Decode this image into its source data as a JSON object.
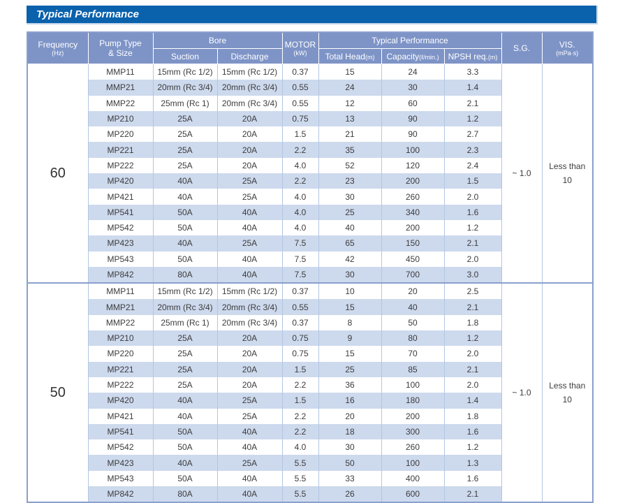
{
  "page": {
    "title": "Typical Performance"
  },
  "colors": {
    "title_bar_bg": "#0a61ac",
    "header_bg": "#7e94c7",
    "row_stripe": "#cdd9ed",
    "table_border": "#8aa0cc",
    "cell_border": "#b3c6e2"
  },
  "table": {
    "headers": {
      "frequency": "Frequency",
      "frequency_unit": "(Hz)",
      "pump_type_line1": "Pump Type",
      "pump_type_line2": "& Size",
      "bore": "Bore",
      "suction": "Suction",
      "discharge": "Discharge",
      "motor": "MOTOR",
      "motor_unit": "(kW)",
      "typical_performance": "Typical Performance",
      "total_head": "Total Head",
      "total_head_unit": "(m)",
      "capacity": "Capacity",
      "capacity_unit": "(ℓ/min.)",
      "npsh": "NPSH req.",
      "npsh_unit": "(m)",
      "sg": "S.G.",
      "vis": "VIS.",
      "vis_unit": "(mPa·s)"
    },
    "row_fields": [
      "pump_type",
      "suction",
      "discharge",
      "motor_kw",
      "total_head_m",
      "capacity_l_min",
      "npsh_req_m"
    ],
    "groups": [
      {
        "frequency": "60",
        "sg": "~ 1.0",
        "vis_line1": "Less than",
        "vis_line2": "10",
        "rows": [
          [
            "MMP11",
            "15mm (Rc 1/2)",
            "15mm (Rc 1/2)",
            "0.37",
            "15",
            "24",
            "3.3"
          ],
          [
            "MMP21",
            "20mm (Rc 3/4)",
            "20mm (Rc 3/4)",
            "0.55",
            "24",
            "30",
            "1.4"
          ],
          [
            "MMP22",
            "25mm (Rc 1)",
            "20mm (Rc 3/4)",
            "0.55",
            "12",
            "60",
            "2.1"
          ],
          [
            "MP210",
            "25A",
            "20A",
            "0.75",
            "13",
            "90",
            "1.2"
          ],
          [
            "MP220",
            "25A",
            "20A",
            "1.5",
            "21",
            "90",
            "2.7"
          ],
          [
            "MP221",
            "25A",
            "20A",
            "2.2",
            "35",
            "100",
            "2.3"
          ],
          [
            "MP222",
            "25A",
            "20A",
            "4.0",
            "52",
            "120",
            "2.4"
          ],
          [
            "MP420",
            "40A",
            "25A",
            "2.2",
            "23",
            "200",
            "1.5"
          ],
          [
            "MP421",
            "40A",
            "25A",
            "4.0",
            "30",
            "260",
            "2.0"
          ],
          [
            "MP541",
            "50A",
            "40A",
            "4.0",
            "25",
            "340",
            "1.6"
          ],
          [
            "MP542",
            "50A",
            "40A",
            "4.0",
            "40",
            "200",
            "1.2"
          ],
          [
            "MP423",
            "40A",
            "25A",
            "7.5",
            "65",
            "150",
            "2.1"
          ],
          [
            "MP543",
            "50A",
            "40A",
            "7.5",
            "42",
            "450",
            "2.0"
          ],
          [
            "MP842",
            "80A",
            "40A",
            "7.5",
            "30",
            "700",
            "3.0"
          ]
        ]
      },
      {
        "frequency": "50",
        "sg": "~ 1.0",
        "vis_line1": "Less than",
        "vis_line2": "10",
        "rows": [
          [
            "MMP11",
            "15mm (Rc 1/2)",
            "15mm (Rc 1/2)",
            "0.37",
            "10",
            "20",
            "2.5"
          ],
          [
            "MMP21",
            "20mm (Rc 3/4)",
            "20mm (Rc 3/4)",
            "0.55",
            "15",
            "40",
            "2.1"
          ],
          [
            "MMP22",
            "25mm (Rc 1)",
            "20mm (Rc 3/4)",
            "0.37",
            "8",
            "50",
            "1.8"
          ],
          [
            "MP210",
            "25A",
            "20A",
            "0.75",
            "9",
            "80",
            "1.2"
          ],
          [
            "MP220",
            "25A",
            "20A",
            "0.75",
            "15",
            "70",
            "2.0"
          ],
          [
            "MP221",
            "25A",
            "20A",
            "1.5",
            "25",
            "85",
            "2.1"
          ],
          [
            "MP222",
            "25A",
            "20A",
            "2.2",
            "36",
            "100",
            "2.0"
          ],
          [
            "MP420",
            "40A",
            "25A",
            "1.5",
            "16",
            "180",
            "1.4"
          ],
          [
            "MP421",
            "40A",
            "25A",
            "2.2",
            "20",
            "200",
            "1.8"
          ],
          [
            "MP541",
            "50A",
            "40A",
            "2.2",
            "18",
            "300",
            "1.6"
          ],
          [
            "MP542",
            "50A",
            "40A",
            "4.0",
            "30",
            "260",
            "1.2"
          ],
          [
            "MP423",
            "40A",
            "25A",
            "5.5",
            "50",
            "100",
            "1.3"
          ],
          [
            "MP543",
            "50A",
            "40A",
            "5.5",
            "33",
            "400",
            "1.6"
          ],
          [
            "MP842",
            "80A",
            "40A",
            "5.5",
            "26",
            "600",
            "2.1"
          ]
        ]
      }
    ]
  }
}
